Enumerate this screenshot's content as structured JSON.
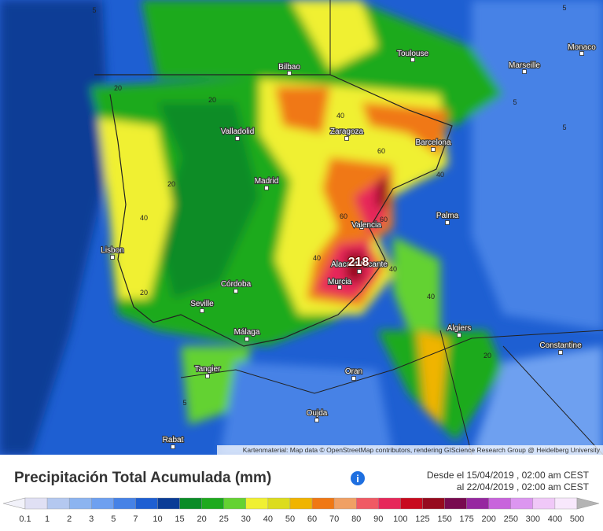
{
  "map": {
    "cities": [
      {
        "name": "Bilbao"
      },
      {
        "name": "Toulouse"
      },
      {
        "name": "Marseille"
      },
      {
        "name": "Monaco"
      },
      {
        "name": "Valladolid"
      },
      {
        "name": "Zaragoza"
      },
      {
        "name": "Barcelona"
      },
      {
        "name": "Madrid"
      },
      {
        "name": "Palma"
      },
      {
        "name": "Valencia"
      },
      {
        "name": "Lisbon"
      },
      {
        "name": "Alacant/Alicante"
      },
      {
        "name": "Murcia"
      },
      {
        "name": "Córdoba"
      },
      {
        "name": "Seville"
      },
      {
        "name": "Algiers"
      },
      {
        "name": "Málaga"
      },
      {
        "name": "Constantine"
      },
      {
        "name": "Tangier"
      },
      {
        "name": "Oran"
      },
      {
        "name": "Oujda"
      },
      {
        "name": "Rabat"
      }
    ],
    "max_label": "218",
    "contour_labels": [
      5,
      5,
      20,
      20,
      20,
      40,
      40,
      60,
      60,
      40,
      40,
      20,
      20,
      5,
      5,
      5,
      40,
      40,
      60
    ],
    "attribution": "Kartenmaterial: Map data © OpenStreetMap contributors, rendering GIScience Research Group @ Heidelberg University"
  },
  "legend": {
    "title": "Precipitación Total Acumulada (mm)",
    "date_from": "Desde el 15/04/2019 , 02:00 am CEST",
    "date_to": "al 22/04/2019 , 02:00 am CEST",
    "scale": [
      0.1,
      1,
      2,
      3,
      5,
      7,
      10,
      15,
      20,
      25,
      30,
      40,
      50,
      60,
      70,
      80,
      90,
      100,
      125,
      150,
      175,
      200,
      250,
      300,
      400,
      500
    ],
    "colors": [
      "#e0e0f4",
      "#b4c8f0",
      "#8cb4f0",
      "#6ea0f0",
      "#4682e6",
      "#1e5fd2",
      "#0a3c96",
      "#0a8c28",
      "#1eaa1e",
      "#64d232",
      "#f0f032",
      "#dcdc1e",
      "#f0b400",
      "#f07814",
      "#f0a064",
      "#f05a64",
      "#e6285a",
      "#c80a1e",
      "#960a1e",
      "#780a50",
      "#9628a0",
      "#c864dc",
      "#dc96f0",
      "#f0c8f8",
      "#f8e8fc"
    ]
  }
}
